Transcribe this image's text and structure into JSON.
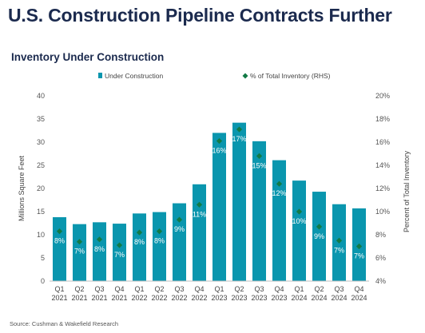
{
  "title": "U.S. Construction Pipeline Contracts Further",
  "subtitle": "Inventory Under Construction",
  "source": "Source: Cushman & Wakefield Research",
  "colors": {
    "bar": "#0a96ae",
    "marker": "#127a45",
    "text_dark": "#1b2a4e"
  },
  "chart_data": {
    "type": "bar",
    "categories": [
      [
        "Q1",
        "2021"
      ],
      [
        "Q2",
        "2021"
      ],
      [
        "Q3",
        "2021"
      ],
      [
        "Q4",
        "2021"
      ],
      [
        "Q1",
        "2022"
      ],
      [
        "Q2",
        "2022"
      ],
      [
        "Q3",
        "2022"
      ],
      [
        "Q4",
        "2022"
      ],
      [
        "Q1",
        "2023"
      ],
      [
        "Q2",
        "2023"
      ],
      [
        "Q3",
        "2023"
      ],
      [
        "Q4",
        "2023"
      ],
      [
        "Q1",
        "2024"
      ],
      [
        "Q2",
        "2024"
      ],
      [
        "Q3",
        "2024"
      ],
      [
        "Q4",
        "2024"
      ]
    ],
    "series": [
      {
        "name": "Under Construction",
        "type": "bar",
        "axis": "left",
        "values": [
          13.8,
          12.3,
          12.7,
          12.4,
          14.6,
          14.9,
          16.8,
          20.9,
          32.0,
          34.2,
          30.2,
          26.1,
          21.7,
          19.3,
          16.6,
          15.7
        ]
      },
      {
        "name": "% of Total Inventory (RHS)",
        "type": "marker",
        "axis": "right",
        "values": [
          8.3,
          7.4,
          7.6,
          7.1,
          8.2,
          8.3,
          9.3,
          10.6,
          16.1,
          17.1,
          14.8,
          12.4,
          10.0,
          8.7,
          7.5,
          7.0
        ],
        "labels": [
          "8%",
          "7%",
          "8%",
          "7%",
          "8%",
          "8%",
          "9%",
          "11%",
          "16%",
          "17%",
          "15%",
          "12%",
          "10%",
          "9%",
          "7%",
          "7%"
        ]
      }
    ],
    "ylabel": "Millions Square Feet",
    "ylabel_right": "Percent of Total Inventory",
    "ylim": [
      0,
      40
    ],
    "yticks": [
      "0",
      "5",
      "10",
      "15",
      "20",
      "25",
      "30",
      "35",
      "40"
    ],
    "ylim_right": [
      4,
      20
    ],
    "yticks_right": [
      "4%",
      "6%",
      "8%",
      "10%",
      "12%",
      "14%",
      "16%",
      "18%",
      "20%"
    ],
    "grid": false,
    "legend_position": "top"
  }
}
